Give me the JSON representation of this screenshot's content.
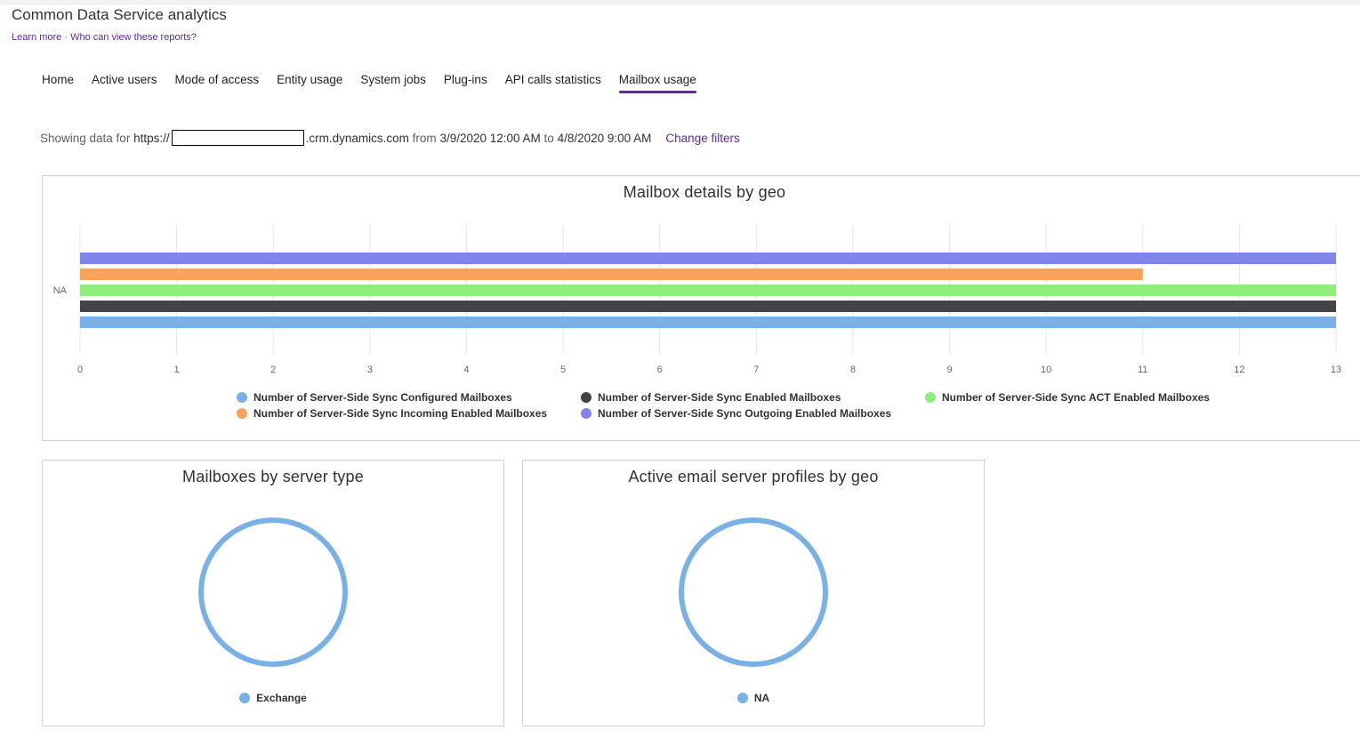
{
  "app": {
    "title": "Common Data Service analytics",
    "learn_more": "Learn more",
    "separator": "·",
    "who_can_view": "Who can view these reports?"
  },
  "tabs": [
    {
      "label": "Home"
    },
    {
      "label": "Active users"
    },
    {
      "label": "Mode of access"
    },
    {
      "label": "Entity usage"
    },
    {
      "label": "System jobs"
    },
    {
      "label": "Plug-ins"
    },
    {
      "label": "API calls statistics"
    },
    {
      "label": "Mailbox usage",
      "active": true
    }
  ],
  "filter": {
    "prefix": "Showing data for",
    "url_start": "https://",
    "url_end": ".crm.dynamics.com",
    "from_word": "from",
    "from_date": "3/9/2020 12:00 AM",
    "to_word": "to",
    "to_date": "4/8/2020 9:00 AM",
    "change_filters": "Change filters"
  },
  "chart_data": [
    {
      "type": "bar",
      "orientation": "horizontal",
      "title": "Mailbox details by geo",
      "categories": [
        "NA"
      ],
      "xlim": [
        0,
        13
      ],
      "xticks": [
        0,
        1,
        2,
        3,
        4,
        5,
        6,
        7,
        8,
        9,
        10,
        11,
        12,
        13
      ],
      "grid": true,
      "legend_position": "bottom",
      "series": [
        {
          "name": "Number of Server-Side Sync Configured Mailboxes",
          "values": [
            13
          ],
          "color": "#79b1e6"
        },
        {
          "name": "Number of Server-Side Sync Enabled Mailboxes",
          "values": [
            13
          ],
          "color": "#434348"
        },
        {
          "name": "Number of Server-Side Sync ACT Enabled Mailboxes",
          "values": [
            13
          ],
          "color": "#90ed7d"
        },
        {
          "name": "Number of Server-Side Sync Incoming Enabled Mailboxes",
          "values": [
            11
          ],
          "color": "#f7a35c"
        },
        {
          "name": "Number of Server-Side Sync Outgoing Enabled Mailboxes",
          "values": [
            13
          ],
          "color": "#8085e9"
        }
      ]
    },
    {
      "type": "pie",
      "style": "donut",
      "title": "Mailboxes by server type",
      "legend_position": "bottom",
      "slices": [
        {
          "label": "Exchange",
          "value": 1,
          "color": "#79b1e6"
        }
      ]
    },
    {
      "type": "pie",
      "style": "donut",
      "title": "Active email server profiles by geo",
      "legend_position": "bottom",
      "slices": [
        {
          "label": "NA",
          "value": 1,
          "color": "#79b1e6"
        }
      ]
    }
  ]
}
